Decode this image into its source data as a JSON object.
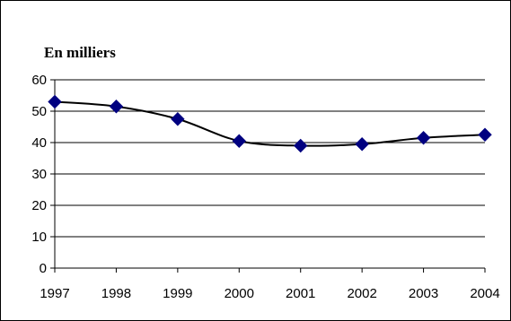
{
  "chart_data": {
    "type": "line",
    "title": "",
    "unit_label": "En milliers",
    "xlabel": "",
    "ylabel": "",
    "categories": [
      "1997",
      "1998",
      "1999",
      "2000",
      "2001",
      "2002",
      "2003",
      "2004"
    ],
    "series": [
      {
        "values": [
          53,
          51.5,
          47.5,
          40.5,
          39,
          39.5,
          41.5,
          42.5
        ]
      }
    ],
    "ylim": [
      0,
      60
    ],
    "yticks": [
      0,
      10,
      20,
      30,
      40,
      50,
      60
    ],
    "grid": true,
    "legend": "none",
    "line_color": "#000000",
    "marker_color": "#000080",
    "marker_shape": "diamond",
    "smooth": true
  }
}
